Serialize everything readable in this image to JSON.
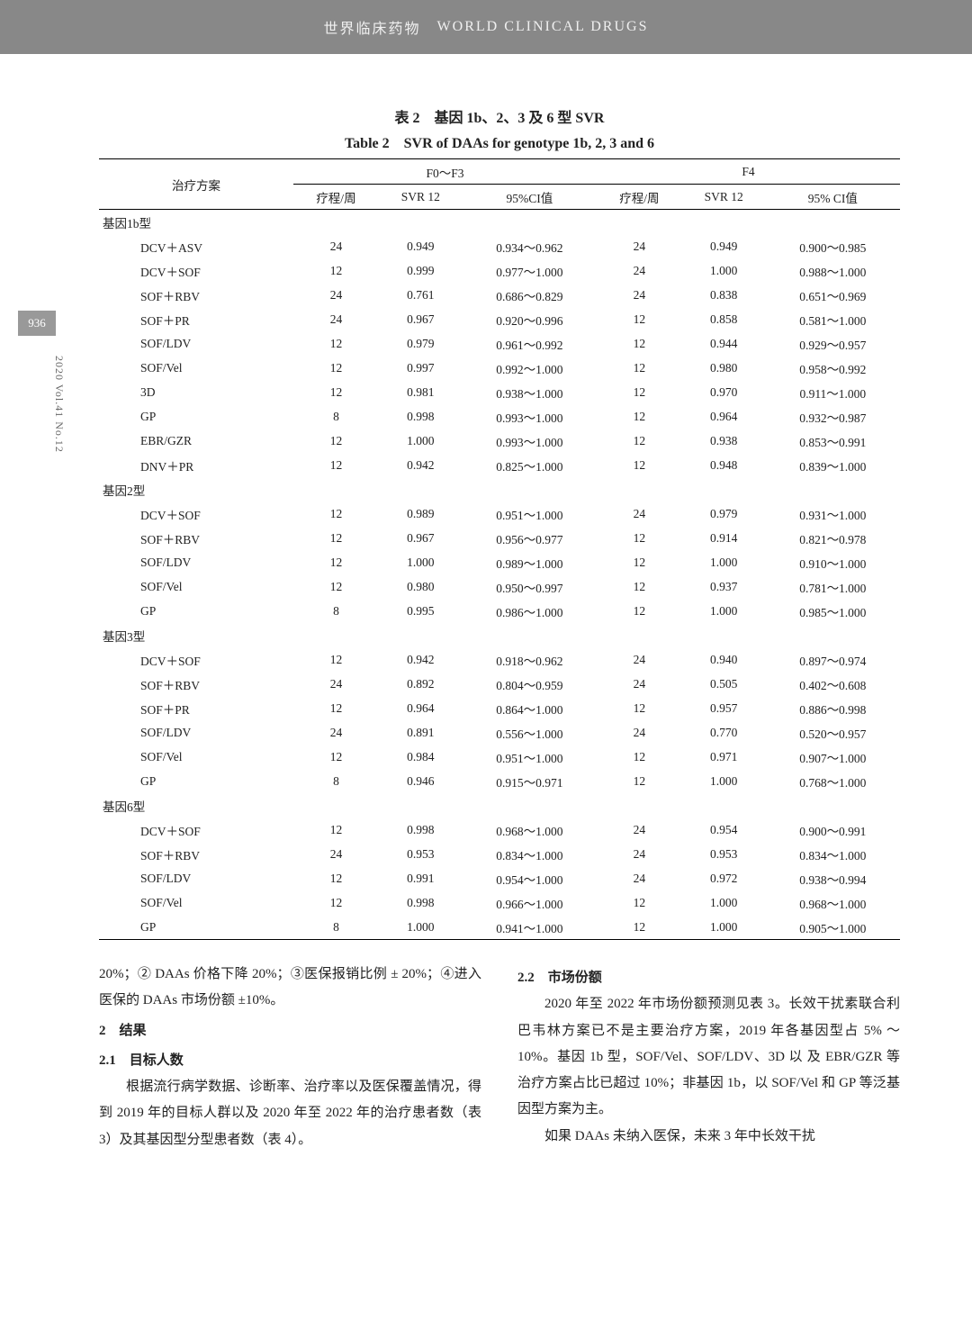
{
  "header": {
    "title_cn": "世界临床药物",
    "title_en": "WORLD CLINICAL DRUGS"
  },
  "side": {
    "page_num": "936",
    "issue": "2020 Vol.41 No.12"
  },
  "table": {
    "caption_cn": "表 2　基因 1b、2、3 及 6 型 SVR",
    "caption_en": "Table 2　SVR of DAAs for genotype 1b, 2, 3 and 6",
    "head": {
      "treatment": "治疗方案",
      "group_a": "F0～F3",
      "group_b": "F4",
      "course": "疗程/周",
      "svr12": "SVR 12",
      "ci_a": "95%CI值",
      "ci_b": "95% CI值"
    },
    "sections": [
      {
        "title": "基因1b型",
        "rows": [
          {
            "t": "DCV＋ASV",
            "a1": "24",
            "a2": "0.949",
            "a3": "0.934～0.962",
            "b1": "24",
            "b2": "0.949",
            "b3": "0.900～0.985"
          },
          {
            "t": "DCV＋SOF",
            "a1": "12",
            "a2": "0.999",
            "a3": "0.977～1.000",
            "b1": "24",
            "b2": "1.000",
            "b3": "0.988～1.000"
          },
          {
            "t": "SOF＋RBV",
            "a1": "24",
            "a2": "0.761",
            "a3": "0.686～0.829",
            "b1": "24",
            "b2": "0.838",
            "b3": "0.651～0.969"
          },
          {
            "t": "SOF＋PR",
            "a1": "24",
            "a2": "0.967",
            "a3": "0.920～0.996",
            "b1": "12",
            "b2": "0.858",
            "b3": "0.581～1.000"
          },
          {
            "t": "SOF/LDV",
            "a1": "12",
            "a2": "0.979",
            "a3": "0.961～0.992",
            "b1": "12",
            "b2": "0.944",
            "b3": "0.929～0.957"
          },
          {
            "t": "SOF/Vel",
            "a1": "12",
            "a2": "0.997",
            "a3": "0.992～1.000",
            "b1": "12",
            "b2": "0.980",
            "b3": "0.958～0.992"
          },
          {
            "t": "3D",
            "a1": "12",
            "a2": "0.981",
            "a3": "0.938～1.000",
            "b1": "12",
            "b2": "0.970",
            "b3": "0.911～1.000"
          },
          {
            "t": "GP",
            "a1": "8",
            "a2": "0.998",
            "a3": "0.993～1.000",
            "b1": "12",
            "b2": "0.964",
            "b3": "0.932～0.987"
          },
          {
            "t": "EBR/GZR",
            "a1": "12",
            "a2": "1.000",
            "a3": "0.993～1.000",
            "b1": "12",
            "b2": "0.938",
            "b3": "0.853～0.991"
          },
          {
            "t": "DNV＋PR",
            "a1": "12",
            "a2": "0.942",
            "a3": "0.825～1.000",
            "b1": "12",
            "b2": "0.948",
            "b3": "0.839～1.000"
          }
        ]
      },
      {
        "title": "基因2型",
        "rows": [
          {
            "t": "DCV＋SOF",
            "a1": "12",
            "a2": "0.989",
            "a3": "0.951～1.000",
            "b1": "24",
            "b2": "0.979",
            "b3": "0.931～1.000"
          },
          {
            "t": "SOF＋RBV",
            "a1": "12",
            "a2": "0.967",
            "a3": "0.956～0.977",
            "b1": "12",
            "b2": "0.914",
            "b3": "0.821～0.978"
          },
          {
            "t": "SOF/LDV",
            "a1": "12",
            "a2": "1.000",
            "a3": "0.989～1.000",
            "b1": "12",
            "b2": "1.000",
            "b3": "0.910～1.000"
          },
          {
            "t": "SOF/Vel",
            "a1": "12",
            "a2": "0.980",
            "a3": "0.950～0.997",
            "b1": "12",
            "b2": "0.937",
            "b3": "0.781～1.000"
          },
          {
            "t": "GP",
            "a1": "8",
            "a2": "0.995",
            "a3": "0.986～1.000",
            "b1": "12",
            "b2": "1.000",
            "b3": "0.985～1.000"
          }
        ]
      },
      {
        "title": "基因3型",
        "rows": [
          {
            "t": "DCV＋SOF",
            "a1": "12",
            "a2": "0.942",
            "a3": "0.918～0.962",
            "b1": "24",
            "b2": "0.940",
            "b3": "0.897～0.974"
          },
          {
            "t": "SOF＋RBV",
            "a1": "24",
            "a2": "0.892",
            "a3": "0.804～0.959",
            "b1": "24",
            "b2": "0.505",
            "b3": "0.402～0.608"
          },
          {
            "t": "SOF＋PR",
            "a1": "12",
            "a2": "0.964",
            "a3": "0.864～1.000",
            "b1": "12",
            "b2": "0.957",
            "b3": "0.886～0.998"
          },
          {
            "t": "SOF/LDV",
            "a1": "24",
            "a2": "0.891",
            "a3": "0.556～1.000",
            "b1": "24",
            "b2": "0.770",
            "b3": "0.520～0.957"
          },
          {
            "t": "SOF/Vel",
            "a1": "12",
            "a2": "0.984",
            "a3": "0.951～1.000",
            "b1": "12",
            "b2": "0.971",
            "b3": "0.907～1.000"
          },
          {
            "t": "GP",
            "a1": "8",
            "a2": "0.946",
            "a3": "0.915～0.971",
            "b1": "12",
            "b2": "1.000",
            "b3": "0.768～1.000"
          }
        ]
      },
      {
        "title": "基因6型",
        "rows": [
          {
            "t": "DCV＋SOF",
            "a1": "12",
            "a2": "0.998",
            "a3": "0.968～1.000",
            "b1": "24",
            "b2": "0.954",
            "b3": "0.900～0.991"
          },
          {
            "t": "SOF＋RBV",
            "a1": "24",
            "a2": "0.953",
            "a3": "0.834～1.000",
            "b1": "24",
            "b2": "0.953",
            "b3": "0.834～1.000"
          },
          {
            "t": "SOF/LDV",
            "a1": "12",
            "a2": "0.991",
            "a3": "0.954～1.000",
            "b1": "24",
            "b2": "0.972",
            "b3": "0.938～0.994"
          },
          {
            "t": "SOF/Vel",
            "a1": "12",
            "a2": "0.998",
            "a3": "0.966～1.000",
            "b1": "12",
            "b2": "1.000",
            "b3": "0.968～1.000"
          },
          {
            "t": "GP",
            "a1": "8",
            "a2": "1.000",
            "a3": "0.941～1.000",
            "b1": "12",
            "b2": "1.000",
            "b3": "0.905～1.000"
          }
        ]
      }
    ]
  },
  "body": {
    "left": {
      "p1": "20%；② DAAs 价格下降 20%；③医保报销比例 ± 20%；④进入医保的 DAAs 市场份额 ±10%。",
      "h2": "2　结果",
      "h21": "2.1　目标人数",
      "p2": "根据流行病学数据、诊断率、治疗率以及医保覆盖情况，得到 2019 年的目标人群以及 2020 年至 2022 年的治疗患者数（表 3）及其基因型分型患者数（表 4）。"
    },
    "right": {
      "h22": "2.2　市场份额",
      "p3": "2020 年至 2022 年市场份额预测见表 3。长效干扰素联合利巴韦林方案已不是主要治疗方案，2019 年各基因型占 5% ～ 10%。基因 1b 型，SOF/Vel、SOF/LDV、3D 以 及 EBR/GZR 等治疗方案占比已超过 10%；非基因 1b，以 SOF/Vel 和 GP 等泛基因型方案为主。",
      "p4": "如果 DAAs 未纳入医保，未来 3 年中长效干扰"
    }
  }
}
